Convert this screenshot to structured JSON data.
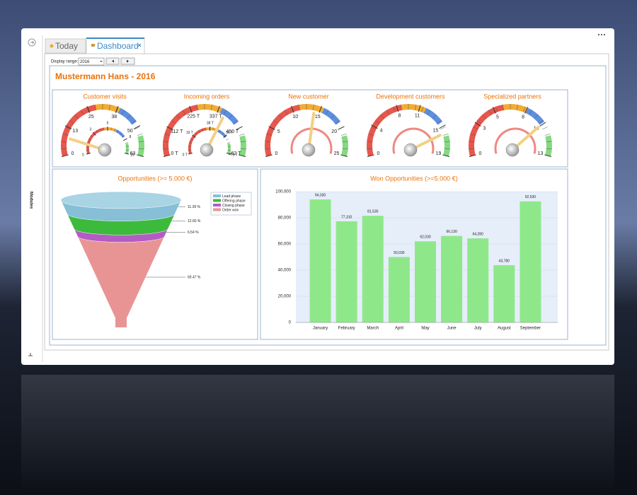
{
  "sidebar": {
    "label": "Modules"
  },
  "tabs": [
    "Today",
    "Dashboard"
  ],
  "toolbar": {
    "label": "Display range:",
    "value": "2016"
  },
  "title": "Mustermann Hans - 2016",
  "gauges": [
    {
      "title": "Customer visits",
      "ticks": [
        0,
        13,
        25,
        38,
        50,
        63
      ],
      "value": 8,
      "inner_ticks": [
        0,
        3,
        5,
        8,
        10
      ]
    },
    {
      "title": "Incoming orders",
      "ticks": [
        {
          "value": 0,
          "label": "0 T"
        },
        {
          "value": 112,
          "label": "112 T"
        },
        {
          "value": 225,
          "label": "225 T"
        },
        {
          "value": 337,
          "label": "337 T"
        },
        {
          "value": 450,
          "label": "450 T"
        },
        {
          "value": 562,
          "label": "562 T"
        }
      ],
      "value": 370,
      "inner_ticks": [
        {
          "value": 0,
          "label": "0 T"
        },
        {
          "value": 19,
          "label": "19 T"
        },
        {
          "value": 38,
          "label": "38 T"
        },
        {
          "value": 56,
          "label": "56 T"
        },
        {
          "value": 75,
          "label": "75 T"
        }
      ]
    },
    {
      "title": "New customer",
      "ticks": [
        0,
        5,
        10,
        15,
        20,
        25
      ],
      "value": 14
    },
    {
      "title": "Development customers",
      "ticks": [
        0,
        4,
        8,
        11,
        15,
        19
      ],
      "value": 16
    },
    {
      "title": "Specialized partners",
      "ticks": [
        0,
        3,
        5,
        8,
        10,
        13
      ],
      "value": 10
    }
  ],
  "funnel": {
    "type": "funnel",
    "title": "Opportunities (>= 5.000 €)",
    "categories": [
      "Lead phase",
      "Offering phase",
      "Closing phase",
      "Order won"
    ],
    "values": [
      11.39,
      12.6,
      6.54,
      69.47
    ],
    "value_labels": [
      "11.39 %",
      "12.60 %",
      "6.54 %",
      "69.47 %"
    ],
    "colors": [
      "#86bfd6",
      "#3cba3c",
      "#b35cc4",
      "#e99494"
    ]
  },
  "bar_chart": {
    "type": "bar",
    "title": "Won Opportunities (>=5.000 €)",
    "categories": [
      "January",
      "February",
      "March",
      "April",
      "May",
      "June",
      "July",
      "August",
      "September"
    ],
    "values": [
      94030,
      77310,
      81530,
      50030,
      62030,
      66130,
      64280,
      43780,
      92530
    ],
    "value_labels": [
      "94,030",
      "77,310",
      "81,530",
      "50,030",
      "62,030",
      "66,130",
      "64,280",
      "43,780",
      "92,530"
    ],
    "color": "#8ee88a",
    "ylim": [
      0,
      100000
    ],
    "yticks": [
      0,
      {
        "value": 20000,
        "label": "20,000"
      },
      {
        "value": 40000,
        "label": "40,000"
      },
      {
        "value": 60000,
        "label": "60,000"
      },
      {
        "value": 80000,
        "label": "80,000"
      },
      {
        "value": 100000,
        "label": "100,000"
      }
    ],
    "grid": true
  }
}
